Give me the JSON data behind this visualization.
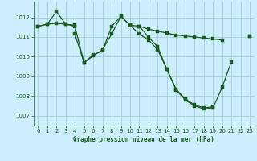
{
  "xlabel": "Graphe pression niveau de la mer (hPa)",
  "background_color": "#cceeff",
  "grid_color": "#99cccc",
  "line_color": "#1a5c1a",
  "ylim": [
    1006.5,
    1012.8
  ],
  "xlim": [
    -0.5,
    23.5
  ],
  "yticks": [
    1007,
    1008,
    1009,
    1010,
    1011,
    1012
  ],
  "xticks": [
    0,
    1,
    2,
    3,
    4,
    5,
    6,
    7,
    8,
    9,
    10,
    11,
    12,
    13,
    14,
    15,
    16,
    17,
    18,
    19,
    20,
    21,
    22,
    23
  ],
  "series": [
    [
      1011.55,
      1011.65,
      1011.7,
      1011.65,
      1011.6,
      null,
      null,
      null,
      null,
      null,
      null,
      1011.55,
      1011.4,
      1011.3,
      1011.2,
      1011.1,
      1011.05,
      1011.0,
      1010.95,
      1010.9,
      1010.85,
      null,
      null,
      1011.05
    ],
    [
      1011.55,
      1011.65,
      1012.3,
      1011.65,
      1011.55,
      1009.7,
      1010.1,
      1010.3,
      1011.55,
      1012.05,
      1011.6,
      null,
      null,
      null,
      null,
      null,
      null,
      null,
      null,
      null,
      null,
      null,
      null,
      null
    ],
    [
      null,
      null,
      null,
      null,
      1011.15,
      1009.7,
      1010.05,
      1010.35,
      1011.15,
      1012.05,
      1011.6,
      1011.15,
      1010.85,
      1010.35,
      1009.35,
      1008.35,
      1007.85,
      1007.55,
      1007.4,
      1007.45,
      null,
      null,
      null,
      null
    ],
    [
      null,
      null,
      null,
      null,
      null,
      null,
      null,
      null,
      null,
      null,
      1011.6,
      1011.55,
      1011.0,
      1010.5,
      1009.35,
      1008.3,
      1007.8,
      1007.5,
      1007.35,
      1007.4,
      1008.45,
      1009.75,
      null,
      1011.05
    ]
  ]
}
